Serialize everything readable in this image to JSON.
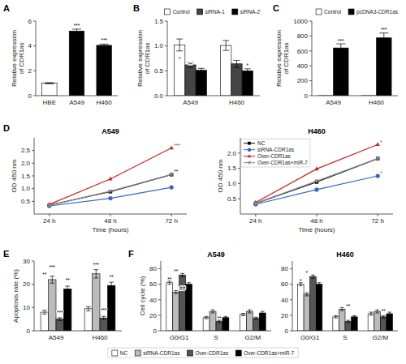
{
  "chart_data": [
    {
      "type": "bar",
      "categories": [
        "HBE",
        "A549",
        "H460"
      ],
      "values": [
        1.0,
        5.2,
        4.05
      ],
      "errors": [
        0.05,
        0.15,
        0.1
      ],
      "colors": [
        "white",
        "black",
        "black"
      ],
      "ylabel": "Relative expression\nof CDR1as",
      "ylim": [
        0,
        6
      ],
      "yticks": [
        0,
        2,
        4,
        6
      ],
      "annotations": [
        {
          "text": "A"
        },
        {
          "text": "***",
          "category": "A549",
          "y": 5.45
        },
        {
          "text": "***",
          "category": "H460",
          "y": 4.28
        }
      ]
    },
    {
      "type": "bar",
      "categories": [
        "A549",
        "H460"
      ],
      "series": [
        {
          "name": "Control",
          "color": "white",
          "values": [
            1.02,
            1.01
          ],
          "errors": [
            0.12,
            0.1
          ]
        },
        {
          "name": "siRNA-1",
          "color": "#444444",
          "values": [
            0.62,
            0.64
          ],
          "errors": [
            0.05,
            0.07
          ]
        },
        {
          "name": "siRNA-2",
          "color": "black",
          "values": [
            0.51,
            0.5
          ],
          "errors": [
            0.04,
            0.04
          ]
        }
      ],
      "ylabel": "Relative expression\nof CDR1as",
      "ylim": [
        0.0,
        1.5
      ],
      "yticks": [
        {
          "value": 0.0,
          "label": "0.0"
        },
        0.5,
        {
          "value": 1.0,
          "label": "1.0"
        },
        1.5
      ],
      "legend": "upper right",
      "annotations": [
        {
          "text": "B"
        },
        {
          "text": "*",
          "category": "A549",
          "series": "Control",
          "y": 0.7
        },
        {
          "text": "**",
          "category": "A549",
          "series": "siRNA-1",
          "y": 0.58
        },
        {
          "text": "*",
          "category": "H460",
          "series": "siRNA-2",
          "y": 0.57
        }
      ]
    },
    {
      "type": "bar",
      "categories": [
        "A549",
        "H460"
      ],
      "series": [
        {
          "name": "Control",
          "color": "white",
          "values": [
            1.0,
            1.0
          ]
        },
        {
          "name": "pcDNA3-CDR1as",
          "color": "black",
          "values": [
            640,
            775
          ],
          "errors": [
            55,
            65
          ]
        }
      ],
      "ylabel": "Relative expression\nof CDR1as",
      "ylim": [
        0,
        1000
      ],
      "yticks": [
        0,
        200,
        400,
        600,
        800,
        1000
      ],
      "legend": "upper right",
      "annotations": [
        {
          "text": "C"
        },
        {
          "text": "***",
          "category": "A549",
          "series": "pcDNA3-CDR1as",
          "y": 710
        },
        {
          "text": "***",
          "category": "H460",
          "series": "pcDNA3-CDR1as",
          "y": 858
        }
      ]
    },
    {
      "type": "line",
      "title": "A549",
      "x": [
        24,
        48,
        72
      ],
      "series": [
        {
          "name": "NC",
          "color": "black",
          "marker": "square",
          "values": [
            0.35,
            0.88,
            1.55
          ]
        },
        {
          "name": "siRNA-CDR1as",
          "color": "#3366cc",
          "marker": "circle",
          "values": [
            0.32,
            0.62,
            1.05
          ]
        },
        {
          "name": "Over-CDR1as",
          "color": "#cc2222",
          "marker": "triangle-up",
          "values": [
            0.38,
            1.38,
            2.6
          ]
        },
        {
          "name": "Over-CDR1as+miR-7",
          "color": "#888888",
          "marker": "triangle-down",
          "values": [
            0.34,
            0.9,
            1.55
          ]
        }
      ],
      "xlabel": "Time (hours)",
      "ylabel": "OD 450 nm",
      "xlim": [
        18,
        78
      ],
      "xticks": [
        {
          "value": 24,
          "label": "24 h"
        },
        {
          "value": 48,
          "label": "48 h"
        },
        {
          "value": 72,
          "label": "72 h"
        }
      ],
      "ylim": [
        0,
        3.0
      ],
      "yticks": [
        0.5,
        {
          "value": 1.0,
          "label": "1.0"
        },
        1.5,
        {
          "value": 2.0,
          "label": "2.0"
        },
        2.5
      ],
      "annotations": [
        {
          "text": "D"
        },
        {
          "text": "***",
          "x": 73,
          "y": 2.62,
          "series": "Over-CDR1as"
        },
        {
          "text": "**",
          "x": 73,
          "y": 1.58,
          "series": "NC"
        }
      ]
    },
    {
      "type": "line",
      "title": "H460",
      "x": [
        24,
        48,
        72
      ],
      "series": [
        {
          "name": "NC",
          "color": "black",
          "marker": "square",
          "values": [
            0.35,
            1.05,
            1.82
          ]
        },
        {
          "name": "siRNA-CDR1as",
          "color": "#3366cc",
          "marker": "circle",
          "values": [
            0.32,
            0.8,
            1.25
          ]
        },
        {
          "name": "Over-CDR1as",
          "color": "#cc2222",
          "marker": "triangle-up",
          "values": [
            0.38,
            1.48,
            2.28
          ]
        },
        {
          "name": "Over-CDR1as+miR-7",
          "color": "#888888",
          "marker": "triangle-down",
          "values": [
            0.35,
            1.08,
            1.82
          ]
        }
      ],
      "xlabel": "Time (hours)",
      "ylabel": "OD 450 nm",
      "xlim": [
        18,
        78
      ],
      "xticks": [
        {
          "value": 24,
          "label": "24 h"
        },
        {
          "value": 48,
          "label": "48 h"
        },
        {
          "value": 72,
          "label": "72 h"
        }
      ],
      "ylim": [
        0,
        2.5
      ],
      "yticks": [
        0.5,
        {
          "value": 1.0,
          "label": "1.0"
        },
        1.5,
        {
          "value": 2.0,
          "label": "2.0"
        }
      ],
      "legend": "upper left",
      "annotations": [
        {
          "text": "*",
          "x": 73,
          "y": 2.3,
          "series": "Over-CDR1as"
        },
        {
          "text": "*",
          "x": 73,
          "y": 1.28,
          "series": "siRNA-CDR1as"
        }
      ]
    },
    {
      "type": "bar",
      "categories": [
        "A549",
        "H460"
      ],
      "series": [
        {
          "name": "NC",
          "color": "white",
          "values": [
            8.0,
            9.5
          ],
          "errors": [
            0.8,
            0.9
          ]
        },
        {
          "name": "siRNA-CDR1as",
          "color": "#bbbbbb",
          "values": [
            22.0,
            24.5
          ],
          "errors": [
            1.5,
            1.8
          ]
        },
        {
          "name": "Over-CDR1as",
          "color": "#555555",
          "values": [
            5.0,
            5.5
          ],
          "errors": [
            0.6,
            0.7
          ]
        },
        {
          "name": "Over-CDR1as+miR-7",
          "color": "black",
          "values": [
            18.0,
            19.5
          ],
          "errors": [
            1.2,
            1.4
          ]
        }
      ],
      "ylabel": "Apoptosis rate (%)",
      "ylim": [
        0,
        30
      ],
      "yticks": [
        0,
        10,
        20,
        30
      ],
      "legend": "bottom",
      "annotations": [
        {
          "text": "E"
        },
        {
          "text": "**",
          "category": "A549",
          "series": "NC",
          "y": 23.5
        },
        {
          "text": "***",
          "category": "A549",
          "series": "siRNA-CDR1as",
          "y": 26.5
        },
        {
          "text": "***",
          "category": "A549",
          "series": "Over-CDR1as",
          "y": 7.0
        },
        {
          "text": "**",
          "category": "A549",
          "series": "Over-CDR1as+miR-7",
          "y": 21.0
        },
        {
          "text": "***",
          "category": "H460",
          "series": "siRNA-CDR1as",
          "y": 27.5
        },
        {
          "text": "***",
          "category": "H460",
          "series": "Over-CDR1as",
          "y": 8.0
        },
        {
          "text": "**",
          "category": "H460",
          "series": "Over-CDR1as+miR-7",
          "y": 22.5
        }
      ]
    },
    {
      "type": "bar",
      "title": "A549",
      "categories": [
        "G0/G1",
        "S",
        "G2/M"
      ],
      "series": [
        {
          "name": "NC",
          "color": "white",
          "values": [
            62,
            17,
            21
          ],
          "errors": [
            2,
            1.5,
            1.5
          ]
        },
        {
          "name": "siRNA-CDR1as",
          "color": "#bbbbbb",
          "values": [
            50,
            25,
            25
          ],
          "errors": [
            2,
            2,
            2
          ]
        },
        {
          "name": "Over-CDR1as",
          "color": "#555555",
          "values": [
            72,
            12,
            16
          ],
          "errors": [
            2,
            1.5,
            1.5
          ]
        },
        {
          "name": "Over-CDR1as+miR-7",
          "color": "black",
          "values": [
            60,
            17,
            23
          ],
          "errors": [
            2,
            1.5,
            2
          ]
        }
      ],
      "ylabel": "Cell cycle (%)",
      "ylim": [
        0,
        90
      ],
      "yticks": [
        0,
        20,
        40,
        60,
        80
      ],
      "annotations": [
        {
          "text": "F"
        },
        {
          "text": "**",
          "category": "G0/G1",
          "series": "NC",
          "y": 64
        },
        {
          "text": "**",
          "category": "G0/G1",
          "series": "siRNA-CDR1as",
          "y": 74
        },
        {
          "text": "##",
          "category": "G0/G1",
          "series": "Over-CDR1as",
          "y": 52
        },
        {
          "text": "**",
          "category": "S",
          "series": "Over-CDR1as",
          "y": 14
        }
      ]
    },
    {
      "type": "bar",
      "title": "H460",
      "categories": [
        "G0/G1",
        "S",
        "G2/M"
      ],
      "series": [
        {
          "name": "NC",
          "color": "white",
          "values": [
            60,
            18,
            22
          ],
          "errors": [
            2,
            1.5,
            2
          ]
        },
        {
          "name": "siRNA-CDR1as",
          "color": "#bbbbbb",
          "values": [
            47,
            28,
            25
          ],
          "errors": [
            2,
            2,
            2
          ]
        },
        {
          "name": "Over-CDR1as",
          "color": "#555555",
          "values": [
            70,
            12,
            18
          ],
          "errors": [
            2,
            1.5,
            1.5
          ]
        },
        {
          "name": "Over-CDR1as+miR-7",
          "color": "black",
          "values": [
            60,
            18,
            22
          ],
          "errors": [
            2,
            1.5,
            2
          ]
        }
      ],
      "ylim": [
        0,
        90
      ],
      "yticks": [
        0,
        20,
        40,
        60,
        80
      ],
      "annotations": [
        {
          "text": "*",
          "category": "G0/G1",
          "series": "NC",
          "y": 62
        },
        {
          "text": "*",
          "category": "G0/G1",
          "series": "siRNA-CDR1as",
          "y": 72
        },
        {
          "text": "**",
          "category": "S",
          "series": "Over-CDR1as",
          "y": 29
        },
        {
          "text": "**",
          "category": "G2/M",
          "series": "Over-CDR1as",
          "y": 23
        }
      ]
    }
  ]
}
